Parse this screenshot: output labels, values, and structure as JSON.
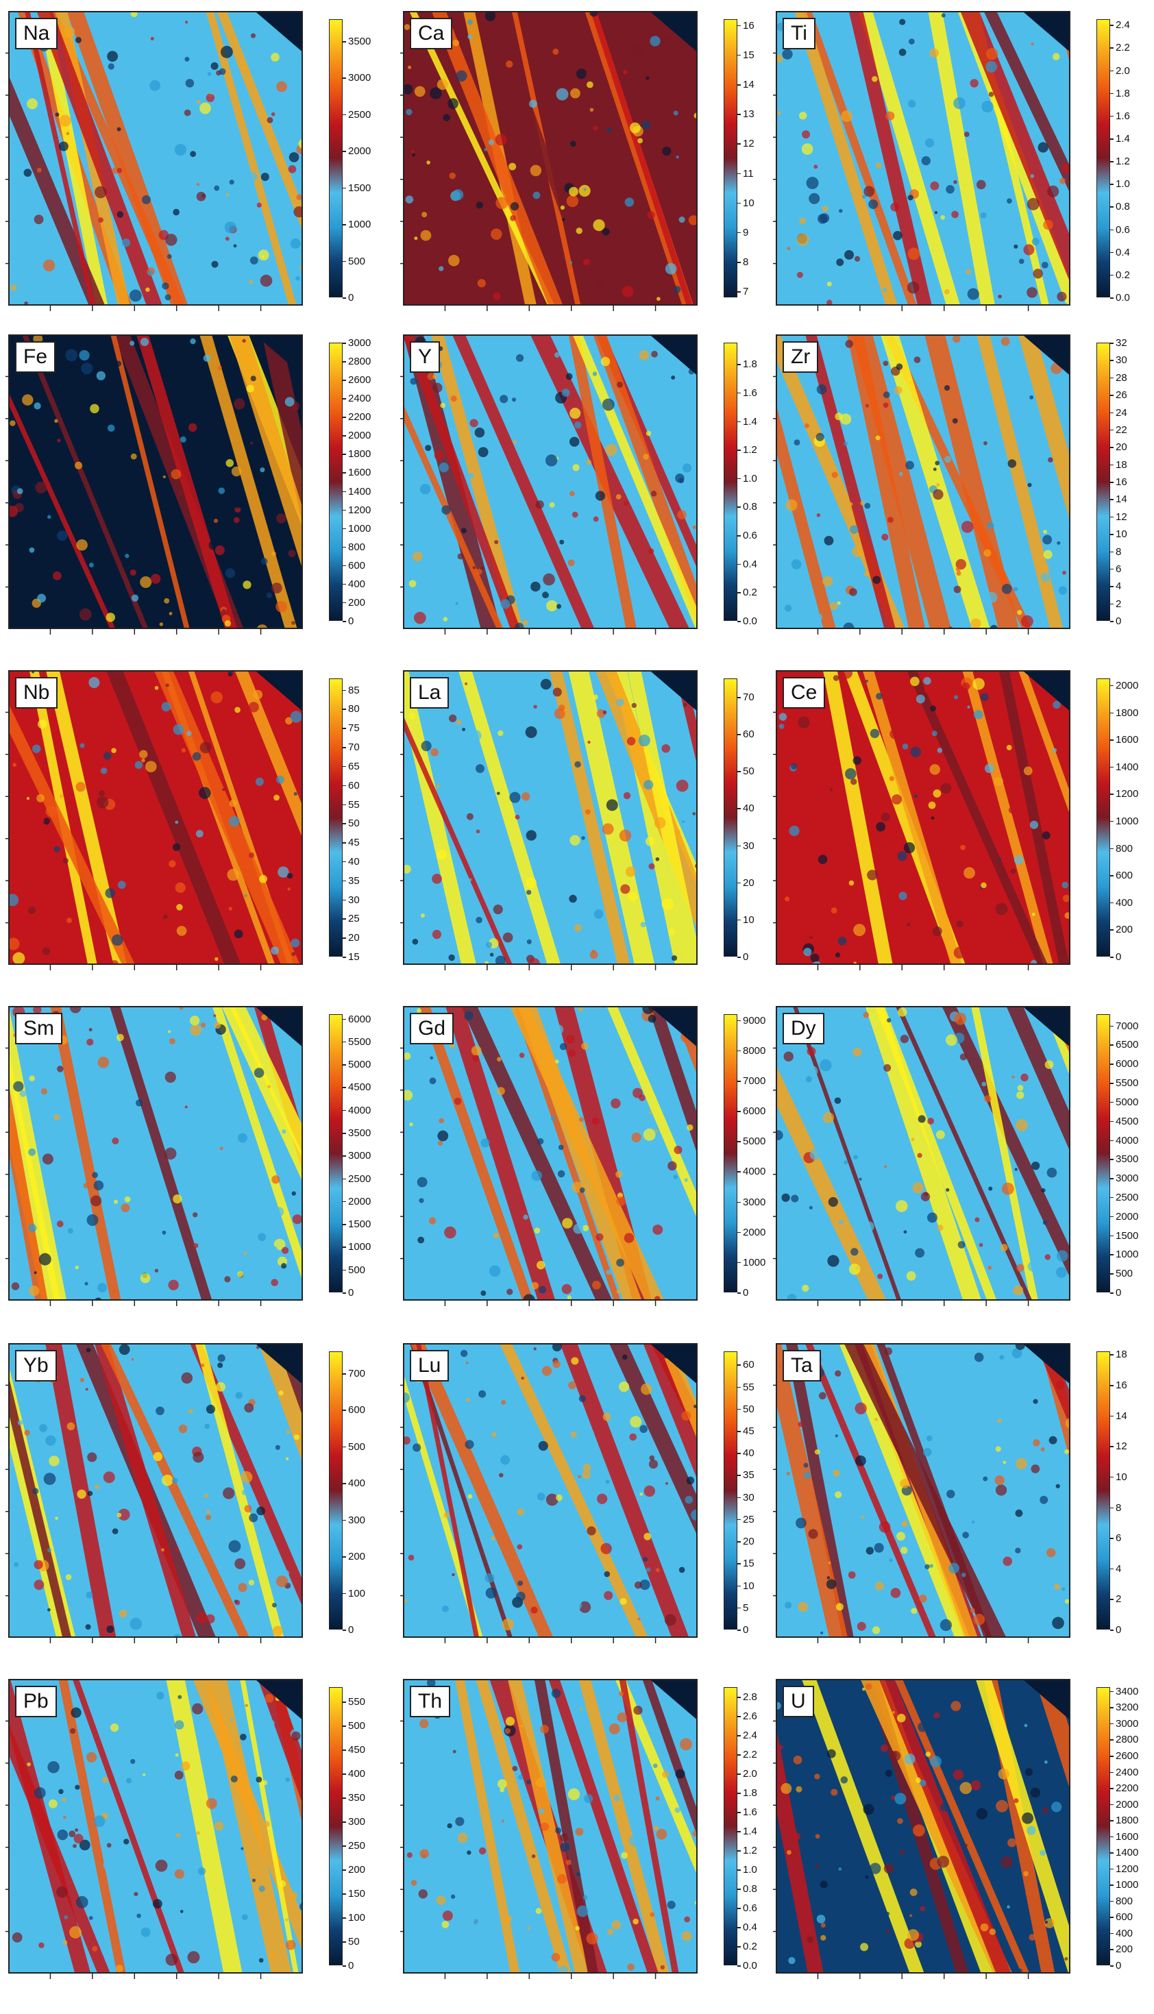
{
  "colormap": [
    "#061a36",
    "#0e3f72",
    "#2a9bd3",
    "#4fbdea",
    "#7a1a24",
    "#c2161c",
    "#ee5a12",
    "#f6a21a",
    "#fff21e"
  ],
  "chart_data": [
    {
      "type": "heatmap",
      "label": "Na",
      "ticks": [
        "0",
        "500",
        "1000",
        "1500",
        "2000",
        "2500",
        "3000",
        "3500"
      ],
      "range": [
        0,
        3800
      ]
    },
    {
      "type": "heatmap",
      "label": "Ca",
      "ticks": [
        "7",
        "8",
        "9",
        "10",
        "11",
        "12",
        "13",
        "14",
        "15",
        "16"
      ],
      "range": [
        6.8,
        16.2
      ]
    },
    {
      "type": "heatmap",
      "label": "Ti",
      "ticks": [
        "0.0",
        "0.2",
        "0.4",
        "0.6",
        "0.8",
        "1.0",
        "1.2",
        "1.4",
        "1.6",
        "1.8",
        "2.0",
        "2.2",
        "2.4"
      ],
      "range": [
        0,
        2.45
      ]
    },
    {
      "type": "heatmap",
      "label": "Fe",
      "ticks": [
        "0",
        "200",
        "400",
        "600",
        "800",
        "1000",
        "1200",
        "1400",
        "1600",
        "1800",
        "2000",
        "2200",
        "2400",
        "2600",
        "2800",
        "3000"
      ],
      "range": [
        0,
        3000
      ]
    },
    {
      "type": "heatmap",
      "label": "Y",
      "ticks": [
        "0.0",
        "0.2",
        "0.4",
        "0.6",
        "0.8",
        "1.0",
        "1.2",
        "1.4",
        "1.6",
        "1.8"
      ],
      "range": [
        0,
        1.95
      ]
    },
    {
      "type": "heatmap",
      "label": "Zr",
      "ticks": [
        "0",
        "2",
        "4",
        "6",
        "8",
        "10",
        "12",
        "14",
        "16",
        "18",
        "20",
        "22",
        "24",
        "26",
        "28",
        "30",
        "32"
      ],
      "range": [
        0,
        32
      ]
    },
    {
      "type": "heatmap",
      "label": "Nb",
      "ticks": [
        "15",
        "20",
        "25",
        "30",
        "35",
        "40",
        "45",
        "50",
        "55",
        "60",
        "65",
        "70",
        "75",
        "80",
        "85"
      ],
      "range": [
        15,
        88
      ]
    },
    {
      "type": "heatmap",
      "label": "La",
      "ticks": [
        "0",
        "10",
        "20",
        "30",
        "40",
        "50",
        "60",
        "70"
      ],
      "range": [
        0,
        75
      ]
    },
    {
      "type": "heatmap",
      "label": "Ce",
      "ticks": [
        "0",
        "200",
        "400",
        "600",
        "800",
        "1000",
        "1200",
        "1400",
        "1600",
        "1800",
        "2000"
      ],
      "range": [
        0,
        2050
      ]
    },
    {
      "type": "heatmap",
      "label": "Sm",
      "ticks": [
        "0",
        "500",
        "1000",
        "1500",
        "2000",
        "2500",
        "3000",
        "3500",
        "4000",
        "4500",
        "5000",
        "5500",
        "6000"
      ],
      "range": [
        0,
        6100
      ]
    },
    {
      "type": "heatmap",
      "label": "Gd",
      "ticks": [
        "0",
        "1000",
        "2000",
        "3000",
        "4000",
        "5000",
        "6000",
        "7000",
        "8000",
        "9000"
      ],
      "range": [
        0,
        9200
      ]
    },
    {
      "type": "heatmap",
      "label": "Dy",
      "ticks": [
        "0",
        "500",
        "1000",
        "1500",
        "2000",
        "2500",
        "3000",
        "3500",
        "4000",
        "4500",
        "5000",
        "5500",
        "6000",
        "6500",
        "7000"
      ],
      "range": [
        0,
        7300
      ]
    },
    {
      "type": "heatmap",
      "label": "Yb",
      "ticks": [
        "0",
        "100",
        "200",
        "300",
        "400",
        "500",
        "600",
        "700"
      ],
      "range": [
        0,
        760
      ]
    },
    {
      "type": "heatmap",
      "label": "Lu",
      "ticks": [
        "0",
        "5",
        "10",
        "15",
        "20",
        "25",
        "30",
        "35",
        "40",
        "45",
        "50",
        "55",
        "60"
      ],
      "range": [
        0,
        63
      ]
    },
    {
      "type": "heatmap",
      "label": "Ta",
      "ticks": [
        "0",
        "2",
        "4",
        "6",
        "8",
        "10",
        "12",
        "14",
        "16",
        "18"
      ],
      "range": [
        0,
        18.2
      ]
    },
    {
      "type": "heatmap",
      "label": "Pb",
      "ticks": [
        "0",
        "50",
        "100",
        "150",
        "200",
        "250",
        "300",
        "350",
        "400",
        "450",
        "500",
        "550"
      ],
      "range": [
        0,
        580
      ]
    },
    {
      "type": "heatmap",
      "label": "Th",
      "ticks": [
        "0.0",
        "0.2",
        "0.4",
        "0.6",
        "0.8",
        "1.0",
        "1.2",
        "1.4",
        "1.6",
        "1.8",
        "2.0",
        "2.2",
        "2.4",
        "2.6",
        "2.8"
      ],
      "range": [
        0,
        2.9
      ]
    },
    {
      "type": "heatmap",
      "label": "U",
      "ticks": [
        "0",
        "200",
        "400",
        "600",
        "800",
        "1000",
        "1200",
        "1400",
        "1600",
        "1800",
        "2000",
        "2200",
        "2400",
        "2600",
        "2800",
        "3000",
        "3200",
        "3400"
      ],
      "range": [
        0,
        3450
      ]
    }
  ]
}
